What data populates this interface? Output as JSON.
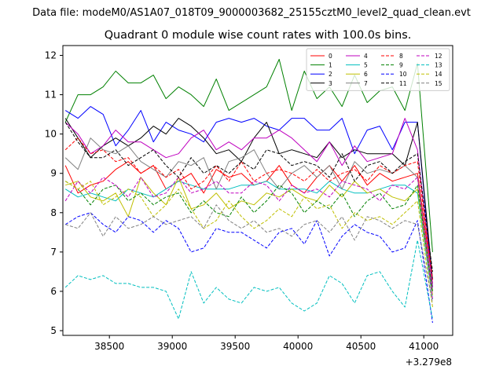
{
  "figure": {
    "suptitle": "Data file: modeM0/AS1A07_018T09_9000003682_25155cztM0_level2_quad_clean.evt"
  },
  "chart_data": {
    "type": "line",
    "title": "Quadrant 0 module wise count rates with 100.0s bins.",
    "xlabel": "",
    "ylabel": "",
    "x_offset_label": "+3.279e8",
    "xlim": [
      38130,
      41230
    ],
    "ylim": [
      4.88,
      12.25
    ],
    "x_ticks": [
      38500,
      39000,
      39500,
      40000,
      40500,
      41000
    ],
    "x_tick_labels": [
      "38500",
      "39000",
      "39500",
      "40000",
      "40500",
      "41000"
    ],
    "y_ticks": [
      5,
      6,
      7,
      8,
      9,
      10,
      11,
      12
    ],
    "y_tick_labels": [
      "5",
      "6",
      "7",
      "8",
      "9",
      "10",
      "11",
      "12"
    ],
    "x": [
      38150,
      38250,
      38350,
      38450,
      38550,
      38650,
      38750,
      38850,
      38950,
      39050,
      39150,
      39250,
      39350,
      39450,
      39550,
      39650,
      39750,
      39850,
      39950,
      40050,
      40150,
      40250,
      40350,
      40450,
      40550,
      40650,
      40750,
      40850,
      40950,
      41070
    ],
    "legend_position": "top-right",
    "legend_columns": 4,
    "series": [
      {
        "name": "0",
        "color": "#ff0000",
        "dash": "solid",
        "values": [
          9.2,
          8.5,
          8.7,
          8.8,
          9.1,
          9.3,
          9.0,
          9.2,
          8.6,
          8.8,
          9.0,
          8.5,
          9.1,
          8.9,
          9.0,
          8.7,
          8.8,
          9.2,
          8.7,
          8.5,
          8.9,
          9.2,
          8.8,
          9.2,
          8.7,
          9.0,
          8.8,
          8.9,
          9.0,
          6.2
        ]
      },
      {
        "name": "1",
        "color": "#008000",
        "dash": "solid",
        "values": [
          10.3,
          11.0,
          11.0,
          11.2,
          11.6,
          11.3,
          11.3,
          11.5,
          10.9,
          11.2,
          11.0,
          10.7,
          11.4,
          10.6,
          10.8,
          11.0,
          11.2,
          11.9,
          10.6,
          11.6,
          10.9,
          11.2,
          10.7,
          11.5,
          10.8,
          11.1,
          11.2,
          10.6,
          11.8,
          7.0
        ]
      },
      {
        "name": "2",
        "color": "#0000ff",
        "dash": "solid",
        "values": [
          10.6,
          10.4,
          10.7,
          10.5,
          9.7,
          10.1,
          10.6,
          9.8,
          10.3,
          10.1,
          10.0,
          9.8,
          10.3,
          10.4,
          10.3,
          10.4,
          10.2,
          10.1,
          10.4,
          10.4,
          10.1,
          10.1,
          10.4,
          9.5,
          10.1,
          10.2,
          9.6,
          10.3,
          10.3,
          6.1
        ]
      },
      {
        "name": "3",
        "color": "#000000",
        "dash": "solid",
        "values": [
          10.4,
          9.9,
          9.4,
          9.7,
          9.9,
          9.7,
          9.9,
          10.2,
          10.0,
          10.4,
          10.2,
          9.9,
          9.5,
          9.6,
          9.3,
          9.9,
          10.3,
          9.5,
          9.6,
          9.5,
          9.4,
          9.8,
          9.4,
          9.6,
          9.5,
          9.5,
          9.5,
          9.2,
          10.3,
          6.3
        ]
      },
      {
        "name": "4",
        "color": "#bf00bf",
        "dash": "solid",
        "values": [
          10.3,
          10.0,
          9.5,
          9.7,
          10.1,
          9.8,
          9.8,
          9.6,
          9.4,
          9.5,
          9.9,
          10.1,
          9.6,
          9.8,
          9.6,
          9.9,
          9.9,
          10.1,
          9.9,
          9.6,
          9.3,
          9.8,
          9.2,
          9.7,
          9.3,
          9.4,
          9.5,
          10.4,
          9.6,
          6.1
        ]
      },
      {
        "name": "5",
        "color": "#00bfbf",
        "dash": "solid",
        "values": [
          8.6,
          8.4,
          8.5,
          8.4,
          8.3,
          8.6,
          8.5,
          8.4,
          8.6,
          8.8,
          8.7,
          8.6,
          8.6,
          8.6,
          8.7,
          8.7,
          8.8,
          8.6,
          8.6,
          8.6,
          8.5,
          8.8,
          8.6,
          8.5,
          8.5,
          8.6,
          8.7,
          8.7,
          8.5,
          5.8
        ]
      },
      {
        "name": "6",
        "color": "#bfbf00",
        "dash": "solid",
        "values": [
          8.7,
          8.8,
          8.4,
          8.3,
          8.5,
          7.9,
          8.9,
          8.5,
          8.2,
          8.9,
          8.1,
          8.2,
          8.5,
          8.1,
          8.3,
          8.2,
          8.5,
          8.4,
          8.6,
          8.4,
          8.3,
          8.7,
          8.4,
          8.8,
          8.5,
          8.6,
          8.4,
          8.3,
          8.6,
          5.9
        ]
      },
      {
        "name": "7",
        "color": "#808080",
        "dash": "solid",
        "values": [
          9.4,
          9.1,
          9.9,
          9.6,
          9.5,
          9.7,
          9.3,
          9.1,
          8.9,
          9.3,
          9.2,
          9.4,
          8.6,
          9.3,
          9.4,
          9.6,
          9.0,
          8.6,
          9.0,
          9.2,
          8.9,
          9.2,
          8.6,
          9.3,
          9.0,
          9.1,
          9.0,
          9.2,
          8.9,
          6.0
        ]
      },
      {
        "name": "8",
        "color": "#ff0000",
        "dash": "dashed",
        "values": [
          9.6,
          9.9,
          9.5,
          9.6,
          9.3,
          9.4,
          9.0,
          9.2,
          8.9,
          9.1,
          8.6,
          8.8,
          9.2,
          8.8,
          9.3,
          8.8,
          9.0,
          9.1,
          9.0,
          8.8,
          9.1,
          8.8,
          9.0,
          9.1,
          8.8,
          9.2,
          9.0,
          9.2,
          9.3,
          6.3
        ]
      },
      {
        "name": "9",
        "color": "#008000",
        "dash": "dashed",
        "values": [
          8.8,
          8.6,
          8.2,
          8.6,
          8.7,
          8.3,
          8.5,
          8.2,
          8.4,
          8.5,
          8.0,
          8.3,
          8.0,
          7.9,
          8.4,
          8.0,
          8.3,
          8.7,
          8.5,
          8.0,
          8.3,
          8.1,
          8.5,
          7.9,
          8.3,
          8.5,
          8.1,
          8.2,
          8.7,
          6.0
        ]
      },
      {
        "name": "10",
        "color": "#0000ff",
        "dash": "dashed",
        "values": [
          7.7,
          7.9,
          8.0,
          7.7,
          7.5,
          7.9,
          7.8,
          7.5,
          7.8,
          7.6,
          7.0,
          7.1,
          7.6,
          7.5,
          7.5,
          7.3,
          7.1,
          7.5,
          7.6,
          7.2,
          7.8,
          6.9,
          7.4,
          7.7,
          7.5,
          7.4,
          7.0,
          7.1,
          7.8,
          5.2
        ]
      },
      {
        "name": "11",
        "color": "#000000",
        "dash": "dashed",
        "values": [
          10.3,
          9.8,
          9.4,
          9.4,
          9.6,
          9.2,
          9.4,
          9.6,
          9.2,
          8.9,
          9.4,
          9.0,
          9.2,
          9.0,
          9.3,
          9.1,
          9.6,
          9.5,
          9.2,
          9.3,
          9.2,
          8.9,
          9.5,
          8.8,
          9.2,
          9.3,
          9.0,
          9.3,
          9.5,
          6.5
        ]
      },
      {
        "name": "12",
        "color": "#bf00bf",
        "dash": "dashed",
        "values": [
          8.3,
          8.8,
          8.5,
          8.9,
          8.7,
          8.4,
          8.9,
          8.4,
          8.5,
          8.9,
          8.5,
          8.6,
          8.8,
          8.5,
          8.5,
          8.8,
          8.7,
          8.3,
          8.7,
          8.5,
          8.6,
          8.4,
          8.8,
          8.7,
          8.6,
          8.3,
          8.7,
          8.6,
          8.9,
          5.8
        ]
      },
      {
        "name": "13",
        "color": "#00bfbf",
        "dash": "dashed",
        "values": [
          6.1,
          6.4,
          6.3,
          6.4,
          6.2,
          6.2,
          6.1,
          6.1,
          6.0,
          5.3,
          6.5,
          5.7,
          6.1,
          5.8,
          5.7,
          6.1,
          6.0,
          6.1,
          5.7,
          5.5,
          5.7,
          6.4,
          6.2,
          5.7,
          6.4,
          6.5,
          6.0,
          5.6,
          7.3,
          5.3
        ]
      },
      {
        "name": "14",
        "color": "#bfbf00",
        "dash": "dashed",
        "values": [
          8.8,
          8.6,
          8.8,
          8.2,
          8.4,
          8.6,
          8.4,
          7.9,
          8.2,
          8.6,
          8.1,
          7.6,
          7.8,
          8.3,
          7.9,
          7.6,
          7.8,
          8.1,
          7.9,
          8.4,
          8.1,
          8.2,
          7.6,
          8.0,
          7.8,
          7.9,
          7.7,
          8.0,
          8.3,
          5.6
        ]
      },
      {
        "name": "15",
        "color": "#808080",
        "dash": "dashed",
        "values": [
          7.7,
          7.6,
          8.0,
          7.4,
          7.9,
          7.6,
          7.7,
          7.9,
          7.7,
          7.8,
          7.9,
          7.6,
          8.2,
          7.8,
          7.6,
          7.8,
          7.5,
          7.6,
          7.4,
          7.7,
          7.8,
          7.5,
          7.9,
          7.3,
          7.9,
          7.8,
          7.6,
          7.8,
          7.7,
          5.7
        ]
      }
    ]
  }
}
